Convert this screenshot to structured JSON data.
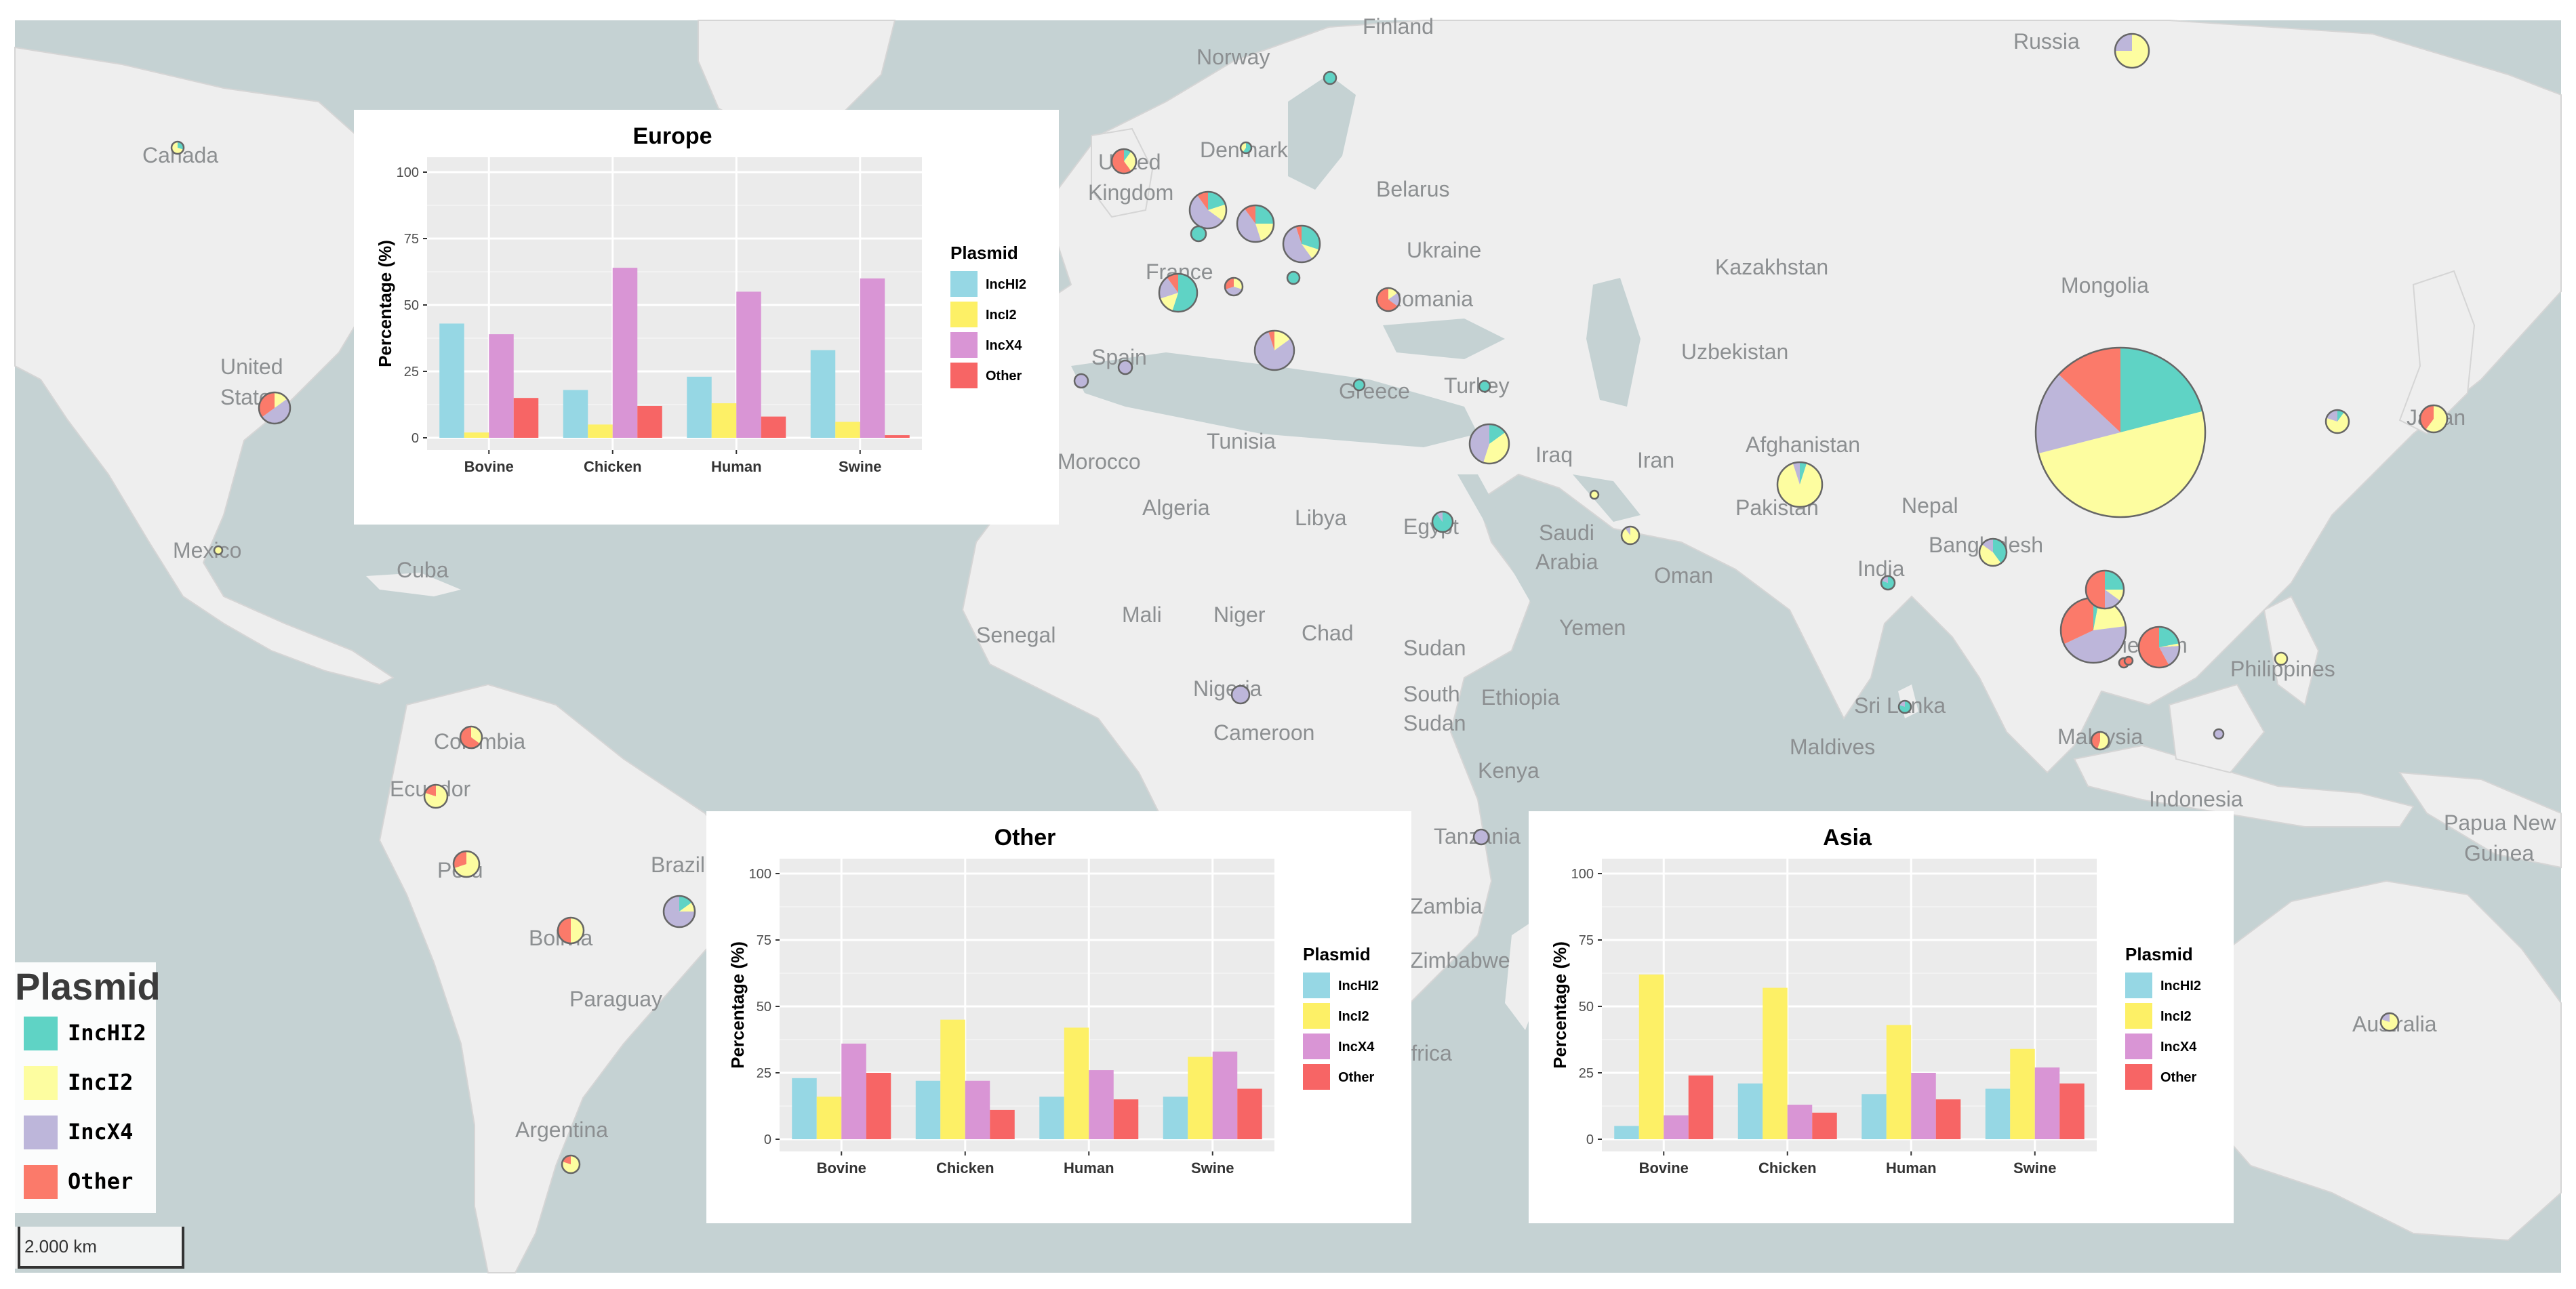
{
  "map": {
    "labels": [
      {
        "id": "finland",
        "text": "Finland"
      },
      {
        "id": "norway",
        "text": "Norway"
      },
      {
        "id": "russia",
        "text": "Russia"
      },
      {
        "id": "canada",
        "text": "Canada"
      },
      {
        "id": "united-kingdom-1",
        "text": "United"
      },
      {
        "id": "united-kingdom-2",
        "text": "Kingdom"
      },
      {
        "id": "denmark",
        "text": "Denmark"
      },
      {
        "id": "belarus",
        "text": "Belarus"
      },
      {
        "id": "ukraine",
        "text": "Ukraine"
      },
      {
        "id": "kazakhstan",
        "text": "Kazakhstan"
      },
      {
        "id": "mongolia",
        "text": "Mongolia"
      },
      {
        "id": "france",
        "text": "France"
      },
      {
        "id": "romania",
        "text": "Romania"
      },
      {
        "id": "united-states-1",
        "text": "United"
      },
      {
        "id": "united-states-2",
        "text": "States"
      },
      {
        "id": "spain",
        "text": "Spain"
      },
      {
        "id": "uzbekistan",
        "text": "Uzbekistan"
      },
      {
        "id": "greece",
        "text": "Greece"
      },
      {
        "id": "turkey",
        "text": "Turkey"
      },
      {
        "id": "japan",
        "text": "Japan"
      },
      {
        "id": "afghanistan",
        "text": "Afghanistan"
      },
      {
        "id": "tunisia",
        "text": "Tunisia"
      },
      {
        "id": "iraq",
        "text": "Iraq"
      },
      {
        "id": "iran",
        "text": "Iran"
      },
      {
        "id": "morocco",
        "text": "Morocco"
      },
      {
        "id": "algeria",
        "text": "Algeria"
      },
      {
        "id": "libya",
        "text": "Libya"
      },
      {
        "id": "egypt",
        "text": "Egypt"
      },
      {
        "id": "pakistan",
        "text": "Pakistan"
      },
      {
        "id": "nepal",
        "text": "Nepal"
      },
      {
        "id": "mexico",
        "text": "Mexico"
      },
      {
        "id": "saudi-arabia-1",
        "text": "Saudi"
      },
      {
        "id": "saudi-arabia-2",
        "text": "Arabia"
      },
      {
        "id": "bangladesh",
        "text": "Bangladesh"
      },
      {
        "id": "cuba",
        "text": "Cuba"
      },
      {
        "id": "oman",
        "text": "Oman"
      },
      {
        "id": "india",
        "text": "India"
      },
      {
        "id": "mali",
        "text": "Mali"
      },
      {
        "id": "niger",
        "text": "Niger"
      },
      {
        "id": "senegal",
        "text": "Senegal"
      },
      {
        "id": "chad",
        "text": "Chad"
      },
      {
        "id": "yemen",
        "text": "Yemen"
      },
      {
        "id": "vietnam",
        "text": "Vietnam"
      },
      {
        "id": "sudan",
        "text": "Sudan"
      },
      {
        "id": "philippines",
        "text": "Philippines"
      },
      {
        "id": "nigeria",
        "text": "Nigeria"
      },
      {
        "id": "south-sudan-1",
        "text": "South"
      },
      {
        "id": "south-sudan-2",
        "text": "Sudan"
      },
      {
        "id": "ethiopia",
        "text": "Ethiopia"
      },
      {
        "id": "sri-lanka",
        "text": "Sri Lanka"
      },
      {
        "id": "cameroon",
        "text": "Cameroon"
      },
      {
        "id": "colombia",
        "text": "Colombia"
      },
      {
        "id": "maldives",
        "text": "Maldives"
      },
      {
        "id": "malaysia",
        "text": "Malaysia"
      },
      {
        "id": "kenya",
        "text": "Kenya"
      },
      {
        "id": "ecuador",
        "text": "Ecuador"
      },
      {
        "id": "indonesia",
        "text": "Indonesia"
      },
      {
        "id": "papua-1",
        "text": "Papua New"
      },
      {
        "id": "papua-2",
        "text": "Guinea"
      },
      {
        "id": "peru",
        "text": "Peru"
      },
      {
        "id": "brazil",
        "text": "Brazil"
      },
      {
        "id": "tanzania",
        "text": "Tanzania"
      },
      {
        "id": "zambia",
        "text": "Zambia"
      },
      {
        "id": "zimbabwe",
        "text": "Zimbabwe"
      },
      {
        "id": "bolivia",
        "text": "Bolivia"
      },
      {
        "id": "paraguay",
        "text": "Paraguay"
      },
      {
        "id": "south-africa",
        "text": "Africa"
      },
      {
        "id": "australia",
        "text": "Australia"
      },
      {
        "id": "argentina",
        "text": "Argentina"
      }
    ],
    "scale_bar": "2.000 km"
  },
  "legend": {
    "title": "Plasmid",
    "items": [
      {
        "label": "IncHI2",
        "color": "#5fd3c5"
      },
      {
        "label": "IncI2",
        "color": "#fdfda0"
      },
      {
        "label": "IncX4",
        "color": "#bdb6da"
      },
      {
        "label": "Other",
        "color": "#fb7a6a"
      }
    ]
  },
  "pies": [
    {
      "place": "China",
      "shares": [
        0.21,
        0.5,
        0.16,
        0.13
      ]
    },
    {
      "place": "Thailand",
      "shares": [
        0.03,
        0.2,
        0.45,
        0.32
      ]
    },
    {
      "place": "Vietnam",
      "shares": [
        0.22,
        0.02,
        0.18,
        0.58
      ]
    },
    {
      "place": "Laos",
      "shares": [
        0.25,
        0.1,
        0.15,
        0.5
      ]
    },
    {
      "place": "Pakistan",
      "shares": [
        0.05,
        0.9,
        0.05,
        0.0
      ]
    },
    {
      "place": "Russia",
      "shares": [
        0.0,
        0.75,
        0.25,
        0.0
      ]
    },
    {
      "place": "Italy",
      "shares": [
        0.0,
        0.15,
        0.8,
        0.05
      ]
    },
    {
      "place": "Germany",
      "shares": [
        0.25,
        0.2,
        0.45,
        0.1
      ]
    },
    {
      "place": "Poland",
      "shares": [
        0.3,
        0.1,
        0.55,
        0.05
      ]
    },
    {
      "place": "Netherlands",
      "shares": [
        0.2,
        0.15,
        0.55,
        0.1
      ]
    },
    {
      "place": "France",
      "shares": [
        0.55,
        0.15,
        0.2,
        0.1
      ]
    },
    {
      "place": "Turkey area",
      "shares": [
        0.15,
        0.4,
        0.45,
        0.0
      ]
    },
    {
      "place": "Romania",
      "shares": [
        0.0,
        0.15,
        0.2,
        0.65
      ]
    },
    {
      "place": "United States",
      "shares": [
        0.0,
        0.15,
        0.5,
        0.35
      ]
    },
    {
      "place": "Brazil",
      "shares": [
        0.15,
        0.1,
        0.75,
        0.0
      ]
    },
    {
      "place": "Bolivia",
      "shares": [
        0.0,
        0.5,
        0.0,
        0.5
      ]
    },
    {
      "place": "Colombia",
      "shares": [
        0.0,
        0.35,
        0.0,
        0.65
      ]
    },
    {
      "place": "Peru",
      "shares": [
        0.0,
        0.7,
        0.0,
        0.3
      ]
    },
    {
      "place": "Ecuador",
      "shares": [
        0.0,
        0.8,
        0.0,
        0.2
      ]
    },
    {
      "place": "Japan",
      "shares": [
        0.0,
        0.6,
        0.0,
        0.4
      ]
    },
    {
      "place": "Korea",
      "shares": [
        0.1,
        0.7,
        0.2,
        0.0
      ]
    },
    {
      "place": "Bangladesh",
      "shares": [
        0.4,
        0.45,
        0.15,
        0.0
      ]
    },
    {
      "place": "United Kingdom",
      "shares": [
        0.1,
        0.3,
        0.0,
        0.6
      ]
    },
    {
      "place": "Egypt",
      "shares": [
        0.9,
        0.0,
        0.1,
        0.0
      ]
    },
    {
      "place": "Malaysia",
      "shares": [
        0.0,
        0.55,
        0.0,
        0.45
      ]
    },
    {
      "place": "Australia",
      "shares": [
        0.0,
        0.8,
        0.2,
        0.0
      ]
    },
    {
      "place": "Argentina",
      "shares": [
        0.0,
        0.8,
        0.0,
        0.2
      ]
    },
    {
      "place": "Switzerland",
      "shares": [
        0.0,
        0.3,
        0.4,
        0.3
      ]
    },
    {
      "place": "Nigeria",
      "shares": [
        0.0,
        0.0,
        1.0,
        0.0
      ]
    },
    {
      "place": "Tanzania",
      "shares": [
        0.0,
        0.0,
        1.0,
        0.0
      ]
    },
    {
      "place": "Oman",
      "shares": [
        0.0,
        0.9,
        0.1,
        0.0
      ]
    },
    {
      "place": "India",
      "shares": [
        0.8,
        0.0,
        0.2,
        0.0
      ]
    },
    {
      "place": "Sri Lanka",
      "shares": [
        0.8,
        0.0,
        0.2,
        0.0
      ]
    },
    {
      "place": "Portugal",
      "shares": [
        0.0,
        0.0,
        1.0,
        0.0
      ]
    },
    {
      "place": "Spain",
      "shares": [
        0.0,
        0.0,
        1.0,
        0.0
      ]
    },
    {
      "place": "Greece",
      "shares": [
        1.0,
        0.0,
        0.0,
        0.0
      ]
    },
    {
      "place": "Turkey",
      "shares": [
        1.0,
        0.0,
        0.0,
        0.0
      ]
    },
    {
      "place": "Denmark",
      "shares": [
        0.6,
        0.4,
        0.0,
        0.0
      ]
    },
    {
      "place": "Sweden",
      "shares": [
        1.0,
        0.0,
        0.0,
        0.0
      ]
    },
    {
      "place": "Hungary",
      "shares": [
        1.0,
        0.0,
        0.0,
        0.0
      ]
    },
    {
      "place": "Belgium",
      "shares": [
        1.0,
        0.0,
        0.0,
        0.0
      ]
    },
    {
      "place": "Philippines",
      "shares": [
        0.0,
        1.0,
        0.0,
        0.0
      ]
    },
    {
      "place": "Canada",
      "shares": [
        0.3,
        0.7,
        0.0,
        0.0
      ]
    },
    {
      "place": "Mexico",
      "shares": [
        0.0,
        1.0,
        0.0,
        0.0
      ]
    },
    {
      "place": "Singapore",
      "shares": [
        0.0,
        0.0,
        0.0,
        1.0
      ]
    },
    {
      "place": "Cambodia",
      "shares": [
        0.0,
        0.0,
        0.0,
        1.0
      ]
    },
    {
      "place": "Borneo",
      "shares": [
        0.0,
        0.0,
        1.0,
        0.0
      ]
    },
    {
      "place": "Kuwait",
      "shares": [
        0.0,
        1.0,
        0.0,
        0.0
      ]
    }
  ],
  "chart_data": [
    {
      "type": "bar",
      "title": "Europe",
      "ylabel": "Percentage (%)",
      "xlabel": "",
      "ylim": [
        0,
        100
      ],
      "yticks": [
        "0",
        "25",
        "50",
        "75",
        "100"
      ],
      "categories": [
        "Bovine",
        "Chicken",
        "Human",
        "Swine"
      ],
      "legend_title": "Plasmid",
      "series": [
        {
          "name": "IncHI2",
          "color": "#96d7e4",
          "values": [
            43,
            18,
            23,
            33
          ]
        },
        {
          "name": "IncI2",
          "color": "#fdf066",
          "values": [
            2,
            5,
            13,
            6
          ]
        },
        {
          "name": "IncX4",
          "color": "#d995d5",
          "values": [
            39,
            64,
            55,
            60
          ]
        },
        {
          "name": "Other",
          "color": "#f76565",
          "values": [
            15,
            12,
            8,
            1
          ]
        }
      ]
    },
    {
      "type": "bar",
      "title": "Other",
      "ylabel": "Percentage (%)",
      "xlabel": "",
      "ylim": [
        0,
        100
      ],
      "yticks": [
        "0",
        "25",
        "50",
        "75",
        "100"
      ],
      "categories": [
        "Bovine",
        "Chicken",
        "Human",
        "Swine"
      ],
      "legend_title": "Plasmid",
      "series": [
        {
          "name": "IncHI2",
          "color": "#96d7e4",
          "values": [
            23,
            22,
            16,
            16
          ]
        },
        {
          "name": "IncI2",
          "color": "#fdf066",
          "values": [
            16,
            45,
            42,
            31
          ]
        },
        {
          "name": "IncX4",
          "color": "#d995d5",
          "values": [
            36,
            22,
            26,
            33
          ]
        },
        {
          "name": "Other",
          "color": "#f76565",
          "values": [
            25,
            11,
            15,
            19
          ]
        }
      ]
    },
    {
      "type": "bar",
      "title": "Asia",
      "ylabel": "Percentage (%)",
      "xlabel": "",
      "ylim": [
        0,
        100
      ],
      "yticks": [
        "0",
        "25",
        "50",
        "75",
        "100"
      ],
      "categories": [
        "Bovine",
        "Chicken",
        "Human",
        "Swine"
      ],
      "legend_title": "Plasmid",
      "series": [
        {
          "name": "IncHI2",
          "color": "#96d7e4",
          "values": [
            5,
            21,
            17,
            19
          ]
        },
        {
          "name": "IncI2",
          "color": "#fdf066",
          "values": [
            62,
            57,
            43,
            34
          ]
        },
        {
          "name": "IncX4",
          "color": "#d995d5",
          "values": [
            9,
            13,
            25,
            27
          ]
        },
        {
          "name": "Other",
          "color": "#f76565",
          "values": [
            24,
            10,
            15,
            21
          ]
        }
      ]
    }
  ]
}
